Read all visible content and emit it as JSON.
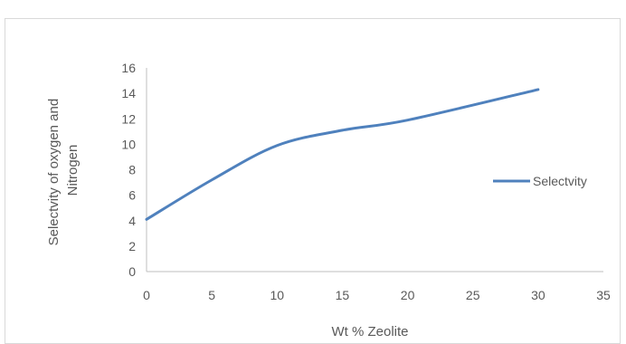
{
  "chart_data": {
    "type": "line",
    "title": "",
    "xlabel": "Wt % Zeolite",
    "ylabel_lines": [
      "Selectvity of oxygen and",
      "Nitrogen"
    ],
    "xlim": [
      0,
      35
    ],
    "ylim": [
      0,
      16
    ],
    "x_ticks": [
      0,
      5,
      10,
      15,
      20,
      25,
      30,
      35
    ],
    "y_ticks": [
      0,
      2,
      4,
      6,
      8,
      10,
      12,
      14,
      16
    ],
    "grid": false,
    "legend_position": "right",
    "series": [
      {
        "name": "Selectvity",
        "color": "#4f81bd",
        "x": [
          0,
          5,
          10,
          15,
          20,
          30
        ],
        "y": [
          4.1,
          7.2,
          9.9,
          11.1,
          11.9,
          14.3
        ]
      }
    ]
  }
}
